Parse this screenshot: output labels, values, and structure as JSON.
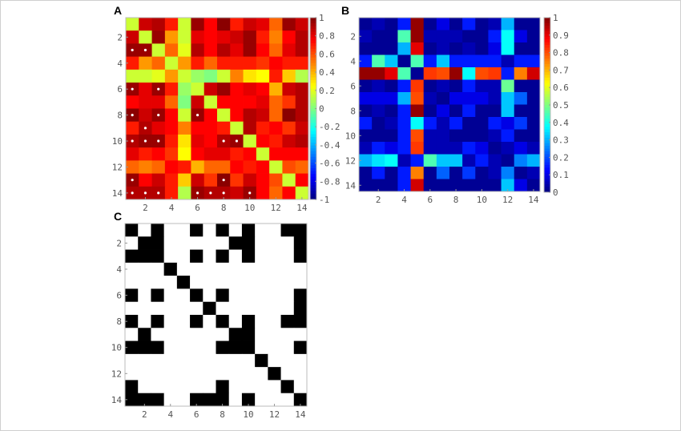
{
  "chart_data": [
    {
      "panel": "A",
      "type": "heatmap",
      "colormap": "jet",
      "clim": [
        -1,
        1
      ],
      "colorbar_ticks": [
        "1",
        "0.8",
        "0.6",
        "0.4",
        "0.2",
        "0",
        "-0.2",
        "-0.4",
        "-0.6",
        "-0.8",
        "-1"
      ],
      "x_ticks": [
        "2",
        "4",
        "6",
        "8",
        "10",
        "12",
        "14"
      ],
      "y_ticks": [
        "2",
        "4",
        "6",
        "8",
        "10",
        "12",
        "14"
      ],
      "marker_color": "#ffffff",
      "significant_cells_row_col": [
        [
          3,
          1
        ],
        [
          3,
          2
        ],
        [
          6,
          1
        ],
        [
          6,
          3
        ],
        [
          8,
          1
        ],
        [
          8,
          3
        ],
        [
          8,
          6
        ],
        [
          9,
          2
        ],
        [
          10,
          1
        ],
        [
          10,
          2
        ],
        [
          10,
          3
        ],
        [
          10,
          8
        ],
        [
          10,
          9
        ],
        [
          13,
          1
        ],
        [
          13,
          8
        ],
        [
          14,
          1
        ],
        [
          14,
          2
        ],
        [
          14,
          3
        ],
        [
          14,
          6
        ],
        [
          14,
          7
        ],
        [
          14,
          8
        ],
        [
          14,
          10
        ]
      ],
      "values": [
        [
          0.15,
          0.85,
          0.9,
          0.7,
          0.15,
          0.95,
          0.75,
          0.98,
          0.7,
          0.85,
          0.8,
          0.55,
          0.95,
          0.85
        ],
        [
          0.85,
          0.15,
          0.95,
          0.45,
          0.15,
          0.8,
          0.75,
          0.8,
          0.85,
          0.95,
          0.7,
          0.5,
          0.75,
          0.9
        ],
        [
          0.95,
          0.95,
          0.15,
          0.55,
          0.2,
          0.9,
          0.75,
          0.9,
          0.8,
          0.95,
          0.75,
          0.55,
          0.8,
          0.9
        ],
        [
          0.7,
          0.45,
          0.55,
          0.15,
          0.45,
          0.7,
          0.55,
          0.7,
          0.7,
          0.7,
          0.65,
          0.75,
          0.7,
          0.7
        ],
        [
          0.15,
          0.15,
          0.2,
          0.45,
          0.15,
          0.05,
          0.0,
          0.15,
          0.5,
          0.3,
          0.25,
          0.7,
          0.35,
          0.1
        ],
        [
          0.95,
          0.8,
          0.95,
          0.7,
          0.05,
          0.15,
          0.85,
          0.95,
          0.75,
          0.8,
          0.75,
          0.4,
          0.85,
          0.9
        ],
        [
          0.75,
          0.8,
          0.8,
          0.55,
          0.0,
          0.85,
          0.15,
          0.75,
          0.75,
          0.75,
          0.8,
          0.55,
          0.65,
          0.9
        ],
        [
          0.98,
          0.85,
          0.95,
          0.75,
          0.15,
          0.95,
          0.75,
          0.15,
          0.75,
          0.9,
          0.85,
          0.55,
          0.98,
          0.9
        ],
        [
          0.7,
          0.9,
          0.8,
          0.75,
          0.5,
          0.75,
          0.75,
          0.7,
          0.15,
          0.9,
          0.7,
          0.75,
          0.65,
          0.85
        ],
        [
          0.9,
          0.95,
          0.95,
          0.7,
          0.3,
          0.8,
          0.75,
          0.9,
          0.95,
          0.15,
          0.75,
          0.7,
          0.85,
          0.9
        ],
        [
          0.8,
          0.7,
          0.75,
          0.65,
          0.25,
          0.75,
          0.8,
          0.8,
          0.7,
          0.75,
          0.15,
          0.75,
          0.75,
          0.75
        ],
        [
          0.55,
          0.5,
          0.55,
          0.75,
          0.7,
          0.4,
          0.55,
          0.55,
          0.75,
          0.7,
          0.75,
          0.15,
          0.6,
          0.55
        ],
        [
          0.95,
          0.75,
          0.85,
          0.7,
          0.35,
          0.85,
          0.65,
          0.98,
          0.65,
          0.85,
          0.75,
          0.6,
          0.15,
          0.75
        ],
        [
          0.9,
          0.9,
          0.9,
          0.7,
          0.1,
          0.95,
          0.9,
          0.9,
          0.85,
          0.95,
          0.75,
          0.55,
          0.75,
          0.15
        ]
      ]
    },
    {
      "panel": "B",
      "type": "heatmap",
      "colormap": "jet",
      "clim": [
        0,
        1
      ],
      "colorbar_ticks": [
        "1",
        "0.9",
        "0.8",
        "0.7",
        "0.6",
        "0.5",
        "0.4",
        "0.3",
        "0.2",
        "0.1",
        "0"
      ],
      "x_ticks": [
        "2",
        "4",
        "6",
        "8",
        "10",
        "12",
        "14"
      ],
      "y_ticks": [
        "2",
        "4",
        "6",
        "8",
        "10",
        "12",
        "14"
      ],
      "values": [
        [
          0.02,
          0.05,
          0.02,
          0.15,
          0.98,
          0.02,
          0.1,
          0.02,
          0.15,
          0.02,
          0.05,
          0.3,
          0.02,
          0.02
        ],
        [
          0.05,
          0.02,
          0.02,
          0.45,
          0.98,
          0.05,
          0.05,
          0.05,
          0.02,
          0.02,
          0.15,
          0.38,
          0.1,
          0.02
        ],
        [
          0.02,
          0.02,
          0.02,
          0.3,
          0.9,
          0.02,
          0.05,
          0.02,
          0.05,
          0.02,
          0.1,
          0.38,
          0.02,
          0.02
        ],
        [
          0.15,
          0.45,
          0.32,
          0.02,
          0.45,
          0.15,
          0.32,
          0.15,
          0.15,
          0.15,
          0.15,
          0.05,
          0.15,
          0.15
        ],
        [
          0.98,
          0.98,
          0.9,
          0.45,
          0.02,
          0.82,
          0.8,
          0.98,
          0.38,
          0.8,
          0.82,
          0.15,
          0.75,
          0.92
        ],
        [
          0.02,
          0.05,
          0.02,
          0.15,
          0.82,
          0.02,
          0.05,
          0.02,
          0.15,
          0.05,
          0.05,
          0.48,
          0.02,
          0.02
        ],
        [
          0.1,
          0.1,
          0.1,
          0.3,
          0.8,
          0.05,
          0.02,
          0.1,
          0.1,
          0.1,
          0.05,
          0.32,
          0.22,
          0.02
        ],
        [
          0.02,
          0.05,
          0.02,
          0.15,
          0.98,
          0.02,
          0.1,
          0.02,
          0.15,
          0.02,
          0.02,
          0.32,
          0.02,
          0.02
        ],
        [
          0.15,
          0.02,
          0.05,
          0.15,
          0.38,
          0.15,
          0.05,
          0.15,
          0.02,
          0.02,
          0.15,
          0.1,
          0.18,
          0.02
        ],
        [
          0.02,
          0.02,
          0.02,
          0.15,
          0.8,
          0.05,
          0.05,
          0.02,
          0.02,
          0.02,
          0.05,
          0.15,
          0.02,
          0.02
        ],
        [
          0.05,
          0.15,
          0.1,
          0.15,
          0.82,
          0.05,
          0.05,
          0.05,
          0.15,
          0.1,
          0.02,
          0.05,
          0.1,
          0.05
        ],
        [
          0.3,
          0.35,
          0.38,
          0.05,
          0.15,
          0.45,
          0.32,
          0.32,
          0.05,
          0.15,
          0.05,
          0.02,
          0.25,
          0.3
        ],
        [
          0.02,
          0.15,
          0.02,
          0.15,
          0.75,
          0.02,
          0.22,
          0.02,
          0.18,
          0.02,
          0.05,
          0.25,
          0.02,
          0.05
        ],
        [
          0.02,
          0.02,
          0.02,
          0.15,
          0.92,
          0.02,
          0.02,
          0.02,
          0.02,
          0.02,
          0.02,
          0.32,
          0.1,
          0.02
        ]
      ]
    },
    {
      "panel": "C",
      "type": "heatmap",
      "colormap": "binary",
      "colors": {
        "1": "#000000",
        "0": "#ffffff"
      },
      "x_ticks": [
        "2",
        "4",
        "6",
        "8",
        "10",
        "12",
        "14"
      ],
      "y_ticks": [
        "2",
        "4",
        "6",
        "8",
        "10",
        "12",
        "14"
      ],
      "values": [
        [
          1,
          0,
          1,
          0,
          0,
          1,
          0,
          1,
          0,
          1,
          0,
          0,
          1,
          1
        ],
        [
          0,
          1,
          1,
          0,
          0,
          0,
          0,
          0,
          1,
          1,
          0,
          0,
          0,
          1
        ],
        [
          1,
          1,
          1,
          0,
          0,
          1,
          0,
          1,
          0,
          1,
          0,
          0,
          0,
          1
        ],
        [
          0,
          0,
          0,
          1,
          0,
          0,
          0,
          0,
          0,
          0,
          0,
          0,
          0,
          0
        ],
        [
          0,
          0,
          0,
          0,
          1,
          0,
          0,
          0,
          0,
          0,
          0,
          0,
          0,
          0
        ],
        [
          1,
          0,
          1,
          0,
          0,
          1,
          0,
          1,
          0,
          0,
          0,
          0,
          0,
          1
        ],
        [
          0,
          0,
          0,
          0,
          0,
          0,
          1,
          0,
          0,
          0,
          0,
          0,
          0,
          1
        ],
        [
          1,
          0,
          1,
          0,
          0,
          1,
          0,
          1,
          0,
          1,
          0,
          0,
          1,
          1
        ],
        [
          0,
          1,
          0,
          0,
          0,
          0,
          0,
          0,
          1,
          1,
          0,
          0,
          0,
          0
        ],
        [
          1,
          1,
          1,
          0,
          0,
          0,
          0,
          1,
          1,
          1,
          0,
          0,
          0,
          1
        ],
        [
          0,
          0,
          0,
          0,
          0,
          0,
          0,
          0,
          0,
          0,
          1,
          0,
          0,
          0
        ],
        [
          0,
          0,
          0,
          0,
          0,
          0,
          0,
          0,
          0,
          0,
          0,
          1,
          0,
          0
        ],
        [
          1,
          0,
          0,
          0,
          0,
          0,
          0,
          1,
          0,
          0,
          0,
          0,
          1,
          0
        ],
        [
          1,
          1,
          1,
          0,
          0,
          1,
          1,
          1,
          0,
          1,
          0,
          0,
          0,
          1
        ]
      ]
    }
  ],
  "panel_labels": {
    "a": "A",
    "b": "B",
    "c": "C"
  }
}
